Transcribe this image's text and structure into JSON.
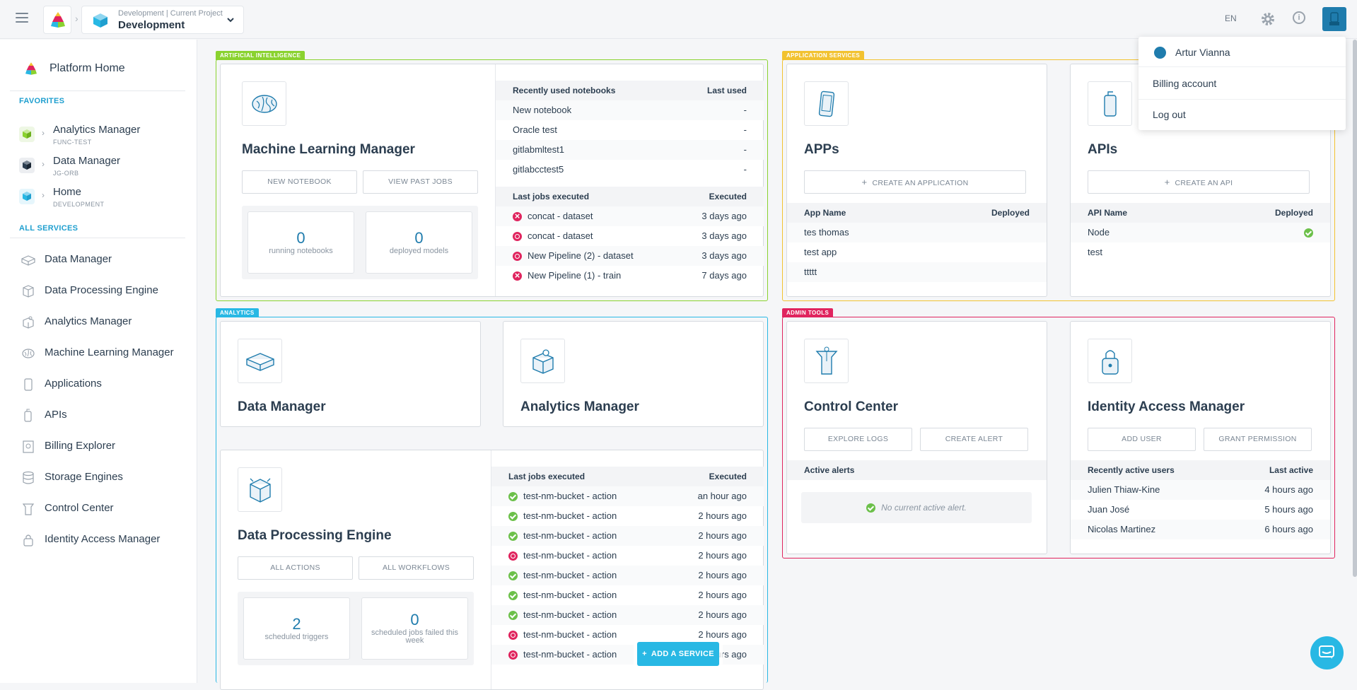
{
  "topbar": {
    "project_context": "Development | Current Project",
    "project_name": "Development",
    "language": "EN"
  },
  "user_menu": {
    "name": "Artur Vianna",
    "items": [
      "Billing account",
      "Log out"
    ]
  },
  "sidebar": {
    "home": "Platform Home",
    "favorites_header": "FAVORITES",
    "favorites": [
      {
        "title": "Analytics Manager",
        "sub": "FUNC-TEST",
        "color": "#8ad22f"
      },
      {
        "title": "Data Manager",
        "sub": "JG-ORB",
        "color": "#2c3e50"
      },
      {
        "title": "Home",
        "sub": "DEVELOPMENT",
        "color": "#28b8e4"
      }
    ],
    "all_services_header": "ALL SERVICES",
    "services": [
      "Data Manager",
      "Data Processing Engine",
      "Analytics Manager",
      "Machine Learning Manager",
      "Applications",
      "APIs",
      "Billing Explorer",
      "Storage Engines",
      "Control Center",
      "Identity Access Manager"
    ]
  },
  "groups": {
    "ai": {
      "label": "ARTIFICIAL INTELLIGENCE",
      "color": "#8ad22f"
    },
    "app": {
      "label": "APPLICATION SERVICES",
      "color": "#f2c230"
    },
    "analytics": {
      "label": "ANALYTICS",
      "color": "#28b8e4"
    },
    "admin": {
      "label": "ADMIN TOOLS",
      "color": "#e0245e"
    }
  },
  "ml": {
    "title": "Machine Learning Manager",
    "btn_new": "NEW NOTEBOOK",
    "btn_past": "VIEW PAST JOBS",
    "stat1_n": "0",
    "stat1_l": "running notebooks",
    "stat2_n": "0",
    "stat2_l": "deployed models",
    "nb_header": "Recently used notebooks",
    "nb_col": "Last used",
    "notebooks": [
      {
        "name": "New notebook",
        "val": "-"
      },
      {
        "name": "Oracle test",
        "val": "-"
      },
      {
        "name": "gitlabmltest1",
        "val": "-"
      },
      {
        "name": "gitlabcctest5",
        "val": "-"
      }
    ],
    "jobs_header": "Last jobs executed",
    "jobs_col": "Executed",
    "jobs": [
      {
        "name": "concat - dataset",
        "val": "3 days ago",
        "status": "err"
      },
      {
        "name": "concat - dataset",
        "val": "3 days ago",
        "status": "run"
      },
      {
        "name": "New Pipeline (2) - dataset",
        "val": "3 days ago",
        "status": "run"
      },
      {
        "name": "New Pipeline (1) - train",
        "val": "7 days ago",
        "status": "err"
      }
    ]
  },
  "apps": {
    "title": "APPs",
    "btn": "CREATE AN APPLICATION",
    "col1": "App Name",
    "col2": "Deployed",
    "rows": [
      "tes thomas",
      "test app",
      "ttttt"
    ]
  },
  "apis": {
    "title": "APIs",
    "btn": "CREATE AN API",
    "col1": "API Name",
    "col2": "Deployed",
    "rows": [
      "Node",
      "test"
    ]
  },
  "dm": {
    "title": "Data Manager"
  },
  "am": {
    "title": "Analytics Manager"
  },
  "dpe": {
    "title": "Data Processing Engine",
    "btn1": "ALL ACTIONS",
    "btn2": "ALL WORKFLOWS",
    "stat1_n": "2",
    "stat1_l": "scheduled triggers",
    "stat2_n": "0",
    "stat2_l": "scheduled jobs failed this week",
    "jobs_header": "Last jobs executed",
    "jobs_col": "Executed",
    "jobs": [
      {
        "name": "test-nm-bucket - action",
        "val": "an hour ago",
        "status": "ok"
      },
      {
        "name": "test-nm-bucket - action",
        "val": "2 hours ago",
        "status": "ok"
      },
      {
        "name": "test-nm-bucket - action",
        "val": "2 hours ago",
        "status": "ok"
      },
      {
        "name": "test-nm-bucket - action",
        "val": "2 hours ago",
        "status": "run"
      },
      {
        "name": "test-nm-bucket - action",
        "val": "2 hours ago",
        "status": "ok"
      },
      {
        "name": "test-nm-bucket - action",
        "val": "2 hours ago",
        "status": "ok"
      },
      {
        "name": "test-nm-bucket - action",
        "val": "2 hours ago",
        "status": "ok"
      },
      {
        "name": "test-nm-bucket - action",
        "val": "2 hours ago",
        "status": "run"
      },
      {
        "name": "test-nm-bucket - action",
        "val": "2 hours ago",
        "status": "run"
      }
    ]
  },
  "cc": {
    "title": "Control Center",
    "btn1": "EXPLORE LOGS",
    "btn2": "CREATE ALERT",
    "alerts_header": "Active alerts",
    "no_alert": "No current active alert."
  },
  "iam": {
    "title": "Identity Access Manager",
    "btn1": "ADD USER",
    "btn2": "GRANT PERMISSION",
    "col1": "Recently active users",
    "col2": "Last active",
    "users": [
      {
        "name": "Julien Thiaw-Kine",
        "val": "4 hours ago"
      },
      {
        "name": "Juan José",
        "val": "5 hours ago"
      },
      {
        "name": "Nicolas Martinez",
        "val": "6 hours ago"
      }
    ]
  },
  "fab": {
    "add_service": "ADD A SERVICE"
  }
}
